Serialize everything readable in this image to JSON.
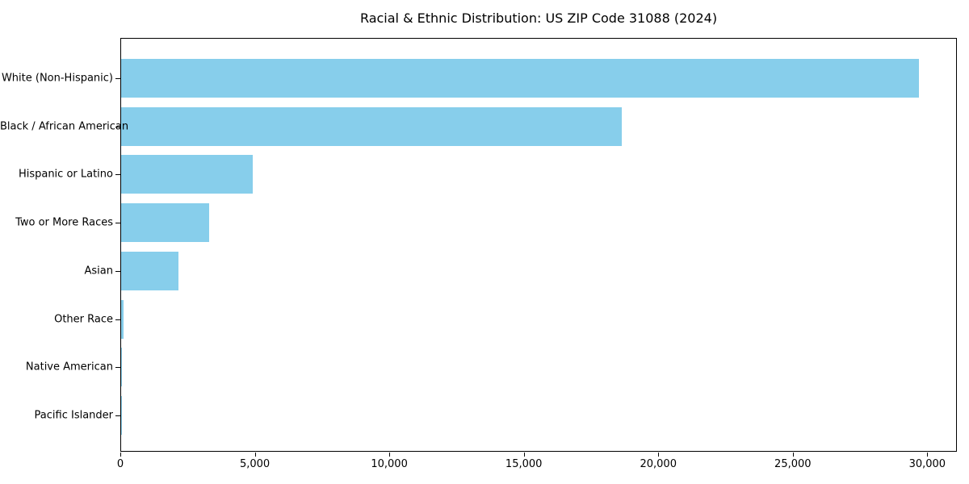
{
  "title": "Racial & Ethnic Distribution: US ZIP Code 31088 (2024)",
  "chart_data": {
    "type": "bar",
    "orientation": "horizontal",
    "title": "Racial & Ethnic Distribution: US ZIP Code 31088 (2024)",
    "categories": [
      "White (Non-Hispanic)",
      "Black / African American",
      "Hispanic or Latino",
      "Two or More Races",
      "Asian",
      "Other Race",
      "Native American",
      "Pacific Islander"
    ],
    "values": [
      29650,
      18600,
      4900,
      3270,
      2130,
      90,
      25,
      10
    ],
    "xlabel": "",
    "ylabel": "",
    "xlim": [
      0,
      31100
    ],
    "xticks": [
      0,
      5000,
      10000,
      15000,
      20000,
      25000,
      30000
    ],
    "xtick_labels": [
      "0",
      "5,000",
      "10,000",
      "15,000",
      "20,000",
      "25,000",
      "30,000"
    ],
    "bar_color": "#87CEEB",
    "spine_color": "#000000",
    "text_color": "#000000",
    "background_color": "#ffffff",
    "grid": false,
    "legend": "none"
  }
}
